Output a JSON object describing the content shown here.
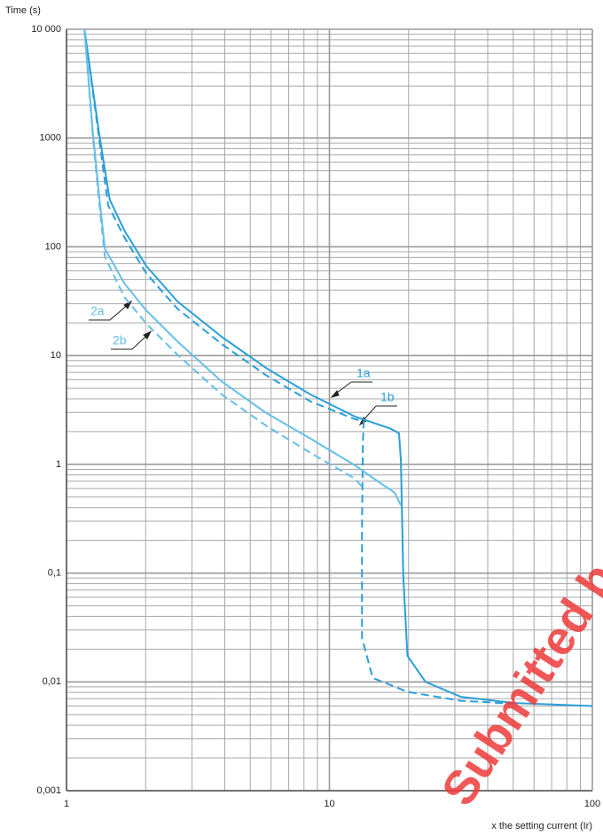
{
  "chart_data": {
    "type": "line",
    "ylabel": "Time (s)",
    "xlabel": "x the setting current (Ir)",
    "xlog": true,
    "ylog": true,
    "grid": true,
    "xlim": [
      1,
      100
    ],
    "xticks": [
      1,
      10,
      100
    ],
    "xminor": [
      2,
      3,
      4,
      5,
      6,
      7,
      8,
      9,
      20,
      30,
      40,
      50,
      60,
      70,
      80,
      90
    ],
    "ylim": [
      0.001,
      10000
    ],
    "yticks": [
      {
        "value": 0.001,
        "label": "0,001"
      },
      {
        "value": 0.01,
        "label": "0,01"
      },
      {
        "value": 0.1,
        "label": "0,1"
      },
      1,
      10,
      100,
      1000,
      {
        "value": 10000,
        "label": "10 000"
      }
    ],
    "yminor": [
      0.002,
      0.003,
      0.004,
      0.005,
      0.006,
      0.007,
      0.008,
      0.009,
      0.02,
      0.03,
      0.04,
      0.05,
      0.06,
      0.07,
      0.08,
      0.09,
      0.2,
      0.3,
      0.4,
      0.5,
      0.6,
      0.7,
      0.8,
      0.9,
      2,
      3,
      4,
      5,
      6,
      7,
      8,
      9,
      20,
      30,
      40,
      50,
      60,
      70,
      80,
      90,
      200,
      300,
      400,
      500,
      600,
      700,
      800,
      900,
      2000,
      3000,
      4000,
      5000,
      6000,
      7000,
      8000,
      9000
    ],
    "series": [
      {
        "name": "1a",
        "color": "#2a9fd8",
        "dashed": false,
        "x": [
          1.17,
          1.33,
          1.46,
          1.66,
          2.01,
          2.64,
          3.89,
          5.74,
          8.45,
          12.5,
          17,
          18.4,
          18.7,
          19.1,
          19.8,
          23.2,
          31.6,
          50.5,
          100
        ],
        "values": [
          10000,
          1112,
          272,
          141,
          66.7,
          31.5,
          14.9,
          7.7,
          4.4,
          2.75,
          2.14,
          1.93,
          1.07,
          0.093,
          0.0174,
          0.01,
          0.0073,
          0.0064,
          0.006
        ]
      },
      {
        "name": "1b",
        "color": "#2a9fd8",
        "dashed": true,
        "x": [
          1.17,
          1.33,
          1.44,
          1.66,
          2.01,
          2.64,
          3.89,
          5.74,
          8.45,
          12.5,
          13.5,
          13.4,
          13.3,
          13.3,
          14.6,
          19.8,
          31.6,
          50.5
        ],
        "values": [
          10000,
          1000,
          240,
          122,
          57,
          27,
          12.8,
          6.6,
          3.8,
          2.6,
          2.5,
          1.56,
          0.24,
          0.0256,
          0.0109,
          0.0081,
          0.0067,
          0.0063
        ]
      },
      {
        "name": "2a",
        "color": "#66bfe8",
        "dashed": false,
        "x": [
          1.17,
          1.26,
          1.33,
          1.4,
          1.66,
          2.01,
          2.64,
          3.89,
          5.74,
          8.45,
          12.5,
          15.8,
          17.7,
          18.7
        ],
        "values": [
          10000,
          1112,
          300,
          96,
          46,
          26,
          13.5,
          5.8,
          2.97,
          1.73,
          0.98,
          0.66,
          0.55,
          0.42
        ]
      },
      {
        "name": "2b",
        "color": "#66bfe8",
        "dashed": true,
        "x": [
          1.17,
          1.26,
          1.33,
          1.4,
          1.66,
          2.01,
          2.64,
          3.89,
          5.74,
          8.45,
          12.5,
          13.3
        ],
        "values": [
          10000,
          1000,
          260,
          81,
          34.5,
          19.7,
          10.2,
          4.4,
          2.27,
          1.28,
          0.74,
          0.62
        ]
      }
    ],
    "annotations": [
      "1a",
      "1b",
      "2a",
      "2b",
      "Submitted b"
    ]
  }
}
